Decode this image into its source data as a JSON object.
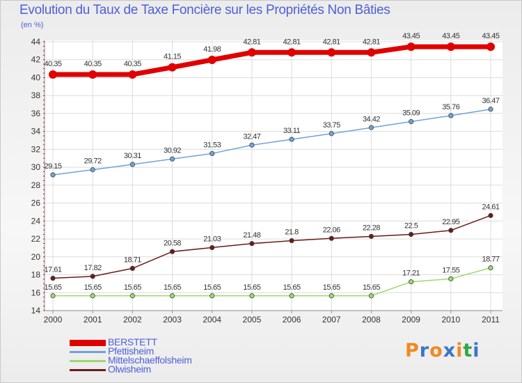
{
  "title": "Evolution du Taux de Taxe Foncière sur les Propriétés Non Bâties",
  "subtitle": "(en %)",
  "logo": [
    "P",
    "r",
    "o",
    "x",
    "i",
    "t",
    "i"
  ],
  "logo_colors": [
    "#f08a1e",
    "#3b74c9",
    "#f08a1e",
    "#3b74c9",
    "#f08a1e",
    "#2ea84a",
    "#3b74c9"
  ],
  "chart_data": {
    "type": "line",
    "x": [
      "2000",
      "2001",
      "2002",
      "2003",
      "2004",
      "2005",
      "2006",
      "2007",
      "2008",
      "2009",
      "2010",
      "2011"
    ],
    "ylim": [
      14,
      44
    ],
    "yticks": [
      14,
      16,
      18,
      20,
      22,
      24,
      26,
      28,
      30,
      32,
      34,
      36,
      38,
      40,
      42,
      44
    ],
    "grid": true,
    "legend_position": "bottom-left",
    "series": [
      {
        "name": "BERSTETT",
        "color": "#e00000",
        "width": 7,
        "values": [
          40.35,
          40.35,
          40.35,
          41.15,
          41.98,
          42.81,
          42.81,
          42.81,
          42.81,
          43.45,
          43.45,
          43.45
        ],
        "labels": [
          "40.35",
          "40.35",
          "40.35",
          "41.15",
          "41.98",
          "42.81",
          "42.81",
          "42.81",
          "42.81",
          "43.45",
          "43.45",
          "43.45"
        ]
      },
      {
        "name": "Pfettisheim",
        "color": "#6fa3d6",
        "width": 1.5,
        "values": [
          29.15,
          29.72,
          30.31,
          30.92,
          31.53,
          32.47,
          33.11,
          33.75,
          34.42,
          35.09,
          35.76,
          36.47
        ],
        "labels": [
          "29.15",
          "29.72",
          "30.31",
          "30.92",
          "31.53",
          "32.47",
          "33.11",
          "33.75",
          "34.42",
          "35.09",
          "35.76",
          "36.47"
        ]
      },
      {
        "name": "Mittelschaeffolsheim",
        "color": "#9ed86b",
        "width": 1.5,
        "values": [
          15.65,
          15.65,
          15.65,
          15.65,
          15.65,
          15.65,
          15.65,
          15.65,
          15.65,
          17.21,
          17.55,
          18.77
        ],
        "labels": [
          "15.65",
          "15.65",
          "15.65",
          "15.65",
          "15.65",
          "15.65",
          "15.65",
          "15.65",
          "15.65",
          "17.21",
          "17.55",
          "18.77"
        ]
      },
      {
        "name": "Olwisheim",
        "color": "#6b1a1a",
        "width": 1.5,
        "values": [
          17.61,
          17.82,
          18.71,
          20.58,
          21.03,
          21.48,
          21.8,
          22.06,
          22.28,
          22.5,
          22.95,
          24.61
        ],
        "labels": [
          "17.61",
          "17.82",
          "18.71",
          "20.58",
          "21.03",
          "21.48",
          "21.8",
          "22.06",
          "22.28",
          "22.5",
          "22.95",
          "24.61"
        ]
      }
    ]
  }
}
